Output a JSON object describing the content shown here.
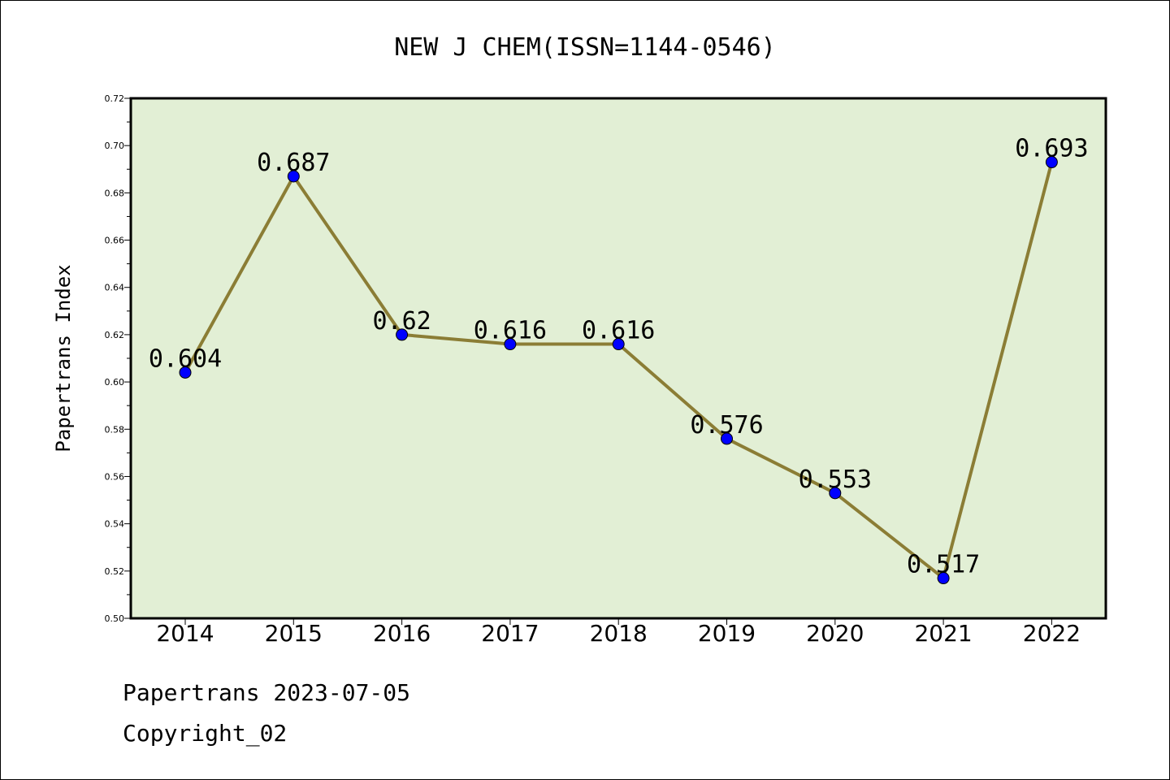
{
  "chart_data": {
    "type": "line",
    "title": "NEW J CHEM(ISSN=1144-0546)",
    "xlabel": "",
    "ylabel": "Papertrans Index",
    "categories": [
      "2014",
      "2015",
      "2016",
      "2017",
      "2018",
      "2019",
      "2020",
      "2021",
      "2022"
    ],
    "values": [
      0.604,
      0.687,
      0.62,
      0.616,
      0.616,
      0.576,
      0.553,
      0.517,
      0.693
    ],
    "data_labels": [
      "0.604",
      "0.687",
      "0.62",
      "0.616",
      "0.616",
      "0.576",
      "0.553",
      "0.517",
      "0.693"
    ],
    "ylim": [
      0.5,
      0.72
    ],
    "yticks": [
      "0.50",
      "0.52",
      "0.54",
      "0.56",
      "0.58",
      "0.60",
      "0.62",
      "0.64",
      "0.66",
      "0.68",
      "0.70",
      "0.72"
    ],
    "grid": false,
    "legend": "none",
    "colors": {
      "line": "#8B7D35",
      "marker": "#0000FF",
      "plot_background": "#E2EFD5"
    }
  },
  "footer": {
    "line1": "Papertrans 2023-07-05",
    "line2": "Copyright_02"
  }
}
